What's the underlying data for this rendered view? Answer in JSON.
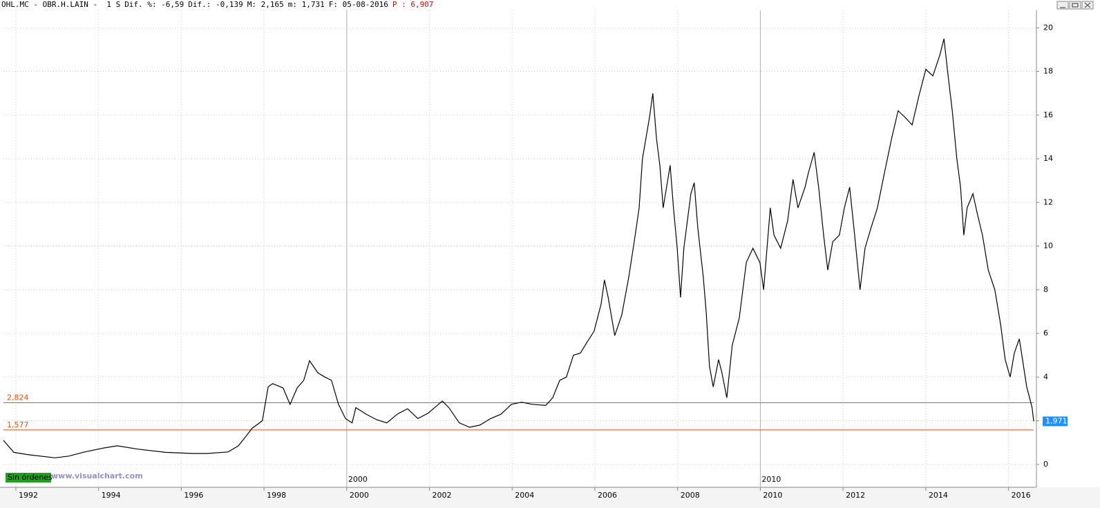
{
  "chart_data": {
    "type": "line",
    "header_fields": [
      "OHL.MC - OBR.H.LAIN -  1 S",
      "Dif. %: -6,59",
      "Dif.: -0,139",
      "M: 2,165",
      "m: 1,731",
      "F: 05-08-2016",
      "P : 6,907"
    ],
    "x": [
      1991.7,
      1991.95,
      1992.28,
      1992.95,
      1993.28,
      1993.62,
      1994.12,
      1994.45,
      1994.95,
      1995.62,
      1996.29,
      1996.62,
      1997.13,
      1997.38,
      1997.54,
      1997.71,
      1997.96,
      1998.1,
      1998.21,
      1998.46,
      1998.63,
      1998.8,
      1998.96,
      1999.1,
      1999.3,
      1999.47,
      1999.63,
      1999.8,
      1999.97,
      2000.13,
      2000.22,
      2000.47,
      2000.72,
      2000.97,
      2001.22,
      2001.47,
      2001.72,
      2001.97,
      2002.31,
      2002.47,
      2002.72,
      2002.97,
      2003.22,
      2003.48,
      2003.73,
      2003.98,
      2004.23,
      2004.48,
      2004.81,
      2004.98,
      2005.15,
      2005.31,
      2005.48,
      2005.65,
      2005.81,
      2005.98,
      2006.15,
      2006.23,
      2006.32,
      2006.48,
      2006.65,
      2006.82,
      2006.95,
      2007.07,
      2007.15,
      2007.32,
      2007.4,
      2007.49,
      2007.57,
      2007.65,
      2007.82,
      2007.9,
      2007.99,
      2008.07,
      2008.15,
      2008.32,
      2008.4,
      2008.49,
      2008.62,
      2008.69,
      2008.77,
      2008.86,
      2008.99,
      2009.07,
      2009.19,
      2009.32,
      2009.49,
      2009.66,
      2009.82,
      2009.99,
      2010.08,
      2010.24,
      2010.33,
      2010.49,
      2010.66,
      2010.79,
      2010.91,
      2011.08,
      2011.16,
      2011.3,
      2011.41,
      2011.53,
      2011.63,
      2011.75,
      2011.91,
      2012.03,
      2012.16,
      2012.28,
      2012.41,
      2012.53,
      2012.67,
      2012.83,
      2013.0,
      2013.17,
      2013.33,
      2013.5,
      2013.67,
      2013.83,
      2014.0,
      2014.17,
      2014.34,
      2014.44,
      2014.54,
      2014.64,
      2014.75,
      2014.84,
      2014.92,
      2015.0,
      2015.14,
      2015.25,
      2015.37,
      2015.51,
      2015.67,
      2015.81,
      2015.92,
      2016.04,
      2016.14,
      2016.26,
      2016.34,
      2016.44,
      2016.51,
      2016.57,
      2016.61
    ],
    "values": [
      1.1,
      0.55,
      0.45,
      0.3,
      0.38,
      0.55,
      0.75,
      0.85,
      0.7,
      0.55,
      0.5,
      0.5,
      0.57,
      0.85,
      1.23,
      1.65,
      2.0,
      3.55,
      3.7,
      3.5,
      2.75,
      3.5,
      3.85,
      4.75,
      4.2,
      4.0,
      3.85,
      2.75,
      2.1,
      1.9,
      2.6,
      2.3,
      2.05,
      1.9,
      2.3,
      2.55,
      2.1,
      2.35,
      2.9,
      2.6,
      1.9,
      1.7,
      1.8,
      2.1,
      2.3,
      2.75,
      2.85,
      2.75,
      2.7,
      3.05,
      3.85,
      4.0,
      5.0,
      5.1,
      5.6,
      6.1,
      7.35,
      8.45,
      7.65,
      5.9,
      6.85,
      8.6,
      10.2,
      11.75,
      14.0,
      15.9,
      17.0,
      14.9,
      13.7,
      11.75,
      13.7,
      11.75,
      9.9,
      7.65,
      9.9,
      12.4,
      12.9,
      10.8,
      8.6,
      7.0,
      4.5,
      3.55,
      4.8,
      4.2,
      3.05,
      5.45,
      6.7,
      9.25,
      9.9,
      9.25,
      8.0,
      11.75,
      10.5,
      9.9,
      11.15,
      13.05,
      11.75,
      12.7,
      13.35,
      14.3,
      12.7,
      10.5,
      8.9,
      10.2,
      10.5,
      11.75,
      12.7,
      10.5,
      8.0,
      9.9,
      10.8,
      11.75,
      13.35,
      14.9,
      16.2,
      15.9,
      15.55,
      16.85,
      18.1,
      17.8,
      18.75,
      19.5,
      17.8,
      16.2,
      14.0,
      12.7,
      10.5,
      11.75,
      12.4,
      11.45,
      10.5,
      8.9,
      8.0,
      6.4,
      4.8,
      4.0,
      5.1,
      5.75,
      4.8,
      3.55,
      3.05,
      2.6,
      1.971
    ],
    "color": "#000000",
    "xlim": [
      1991.7,
      2016.675
    ],
    "xticks": [
      1992,
      1994,
      1996,
      1998,
      2000,
      2002,
      2004,
      2006,
      2008,
      2010,
      2012,
      2014,
      2016
    ],
    "period_markers": [
      2000,
      2010
    ],
    "ylim": [
      -1.05,
      20.8
    ],
    "yticks": [
      0,
      2,
      4,
      6,
      8,
      10,
      12,
      14,
      16,
      18,
      20
    ],
    "grid": true,
    "levels": [
      {
        "value": 2.824,
        "label": "2,824"
      },
      {
        "value": 1.577,
        "label": "1,577"
      }
    ],
    "level_color": "#ff4500",
    "last_price": {
      "value": 1.971,
      "label": "1,971"
    },
    "badge": "Sin órdenes",
    "watermark": "www.visualchart.com"
  }
}
